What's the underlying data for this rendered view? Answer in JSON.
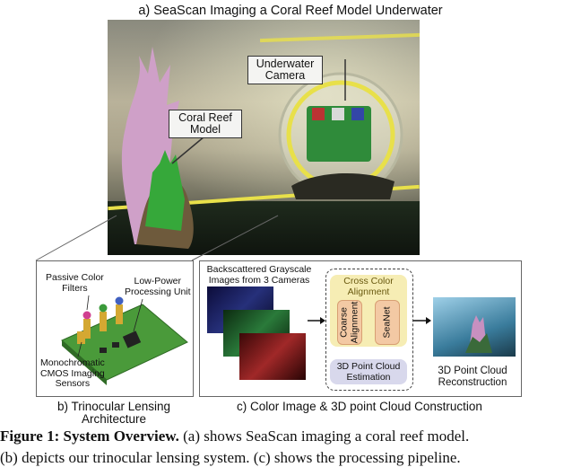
{
  "figure": {
    "title_a": "a) SeaScan Imaging a Coral Reef Model Underwater",
    "photo_labels": {
      "camera": [
        "Underwater",
        "Camera"
      ],
      "coral": [
        "Coral Reef",
        "Model"
      ]
    },
    "panel_b": {
      "labels": {
        "filters": [
          "Passive Color",
          "Filters"
        ],
        "processing": [
          "Low-Power",
          "Processing Unit"
        ],
        "sensors": [
          "Monochromatic",
          "CMOS Imaging",
          "Sensors"
        ]
      },
      "caption": [
        "b) Trinocular Lensing",
        "Architecture"
      ]
    },
    "panel_c": {
      "input_label": [
        "Backscattered Grayscale",
        "Images from 3 Cameras"
      ],
      "cross_color": [
        "Cross Color",
        "Alignment"
      ],
      "coarse": [
        "Coarse",
        "Alignment"
      ],
      "seanet": "SeaNet",
      "pc_estimation": [
        "3D Point Cloud",
        "Estimation"
      ],
      "output_label": [
        "3D Point Cloud",
        "Reconstruction"
      ],
      "caption": "c) Color Image & 3D point Cloud Construction"
    },
    "caption_line1_bold": "Figure 1: System Overview.",
    "caption_line1_rest": " (a) shows SeaScan imaging a coral reef model.",
    "caption_line2": "(b) depicts our trinocular lensing system. (c) shows the processing pipeline."
  },
  "colors": {
    "highlight_ring": "#e8e04a",
    "board_green": "#4a9a3a",
    "cca_fill": "#f6edb4",
    "coarse_fill": "#f3c9a4",
    "pc_fill": "#d8d8ec"
  }
}
